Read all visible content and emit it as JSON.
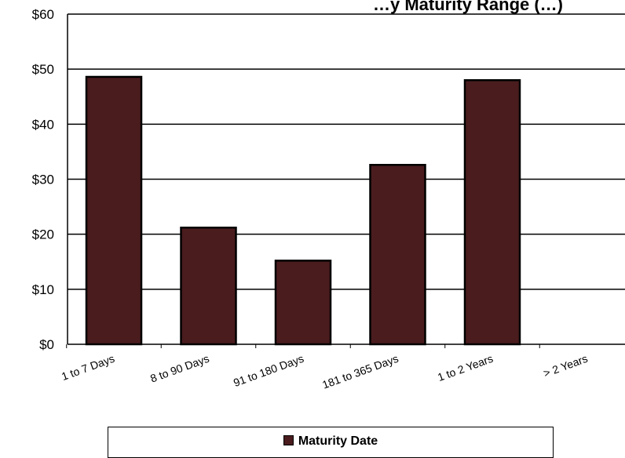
{
  "chart_data": {
    "type": "bar",
    "title": "…y Maturity Range (…)",
    "categories": [
      "1 to 7 Days",
      "8 to 90 Days",
      "91 to 180 Days",
      "181 to 365 Days",
      "1 to 2 Years",
      "> 2 Years"
    ],
    "series": [
      {
        "name": "Maturity Date",
        "values": [
          48.6,
          21.2,
          15.2,
          32.6,
          48.0,
          0
        ]
      }
    ],
    "ylim": [
      0,
      60
    ],
    "yticks": [
      0,
      10,
      20,
      30,
      40,
      50,
      60
    ],
    "ytick_labels": [
      "$0",
      "$10",
      "$20",
      "$30",
      "$40",
      "$50",
      "$60"
    ],
    "grid": true,
    "legend_position": "bottom",
    "colors": {
      "bar": "#4a1c1e",
      "bar_edge": "#000000",
      "grid": "#000000"
    }
  }
}
